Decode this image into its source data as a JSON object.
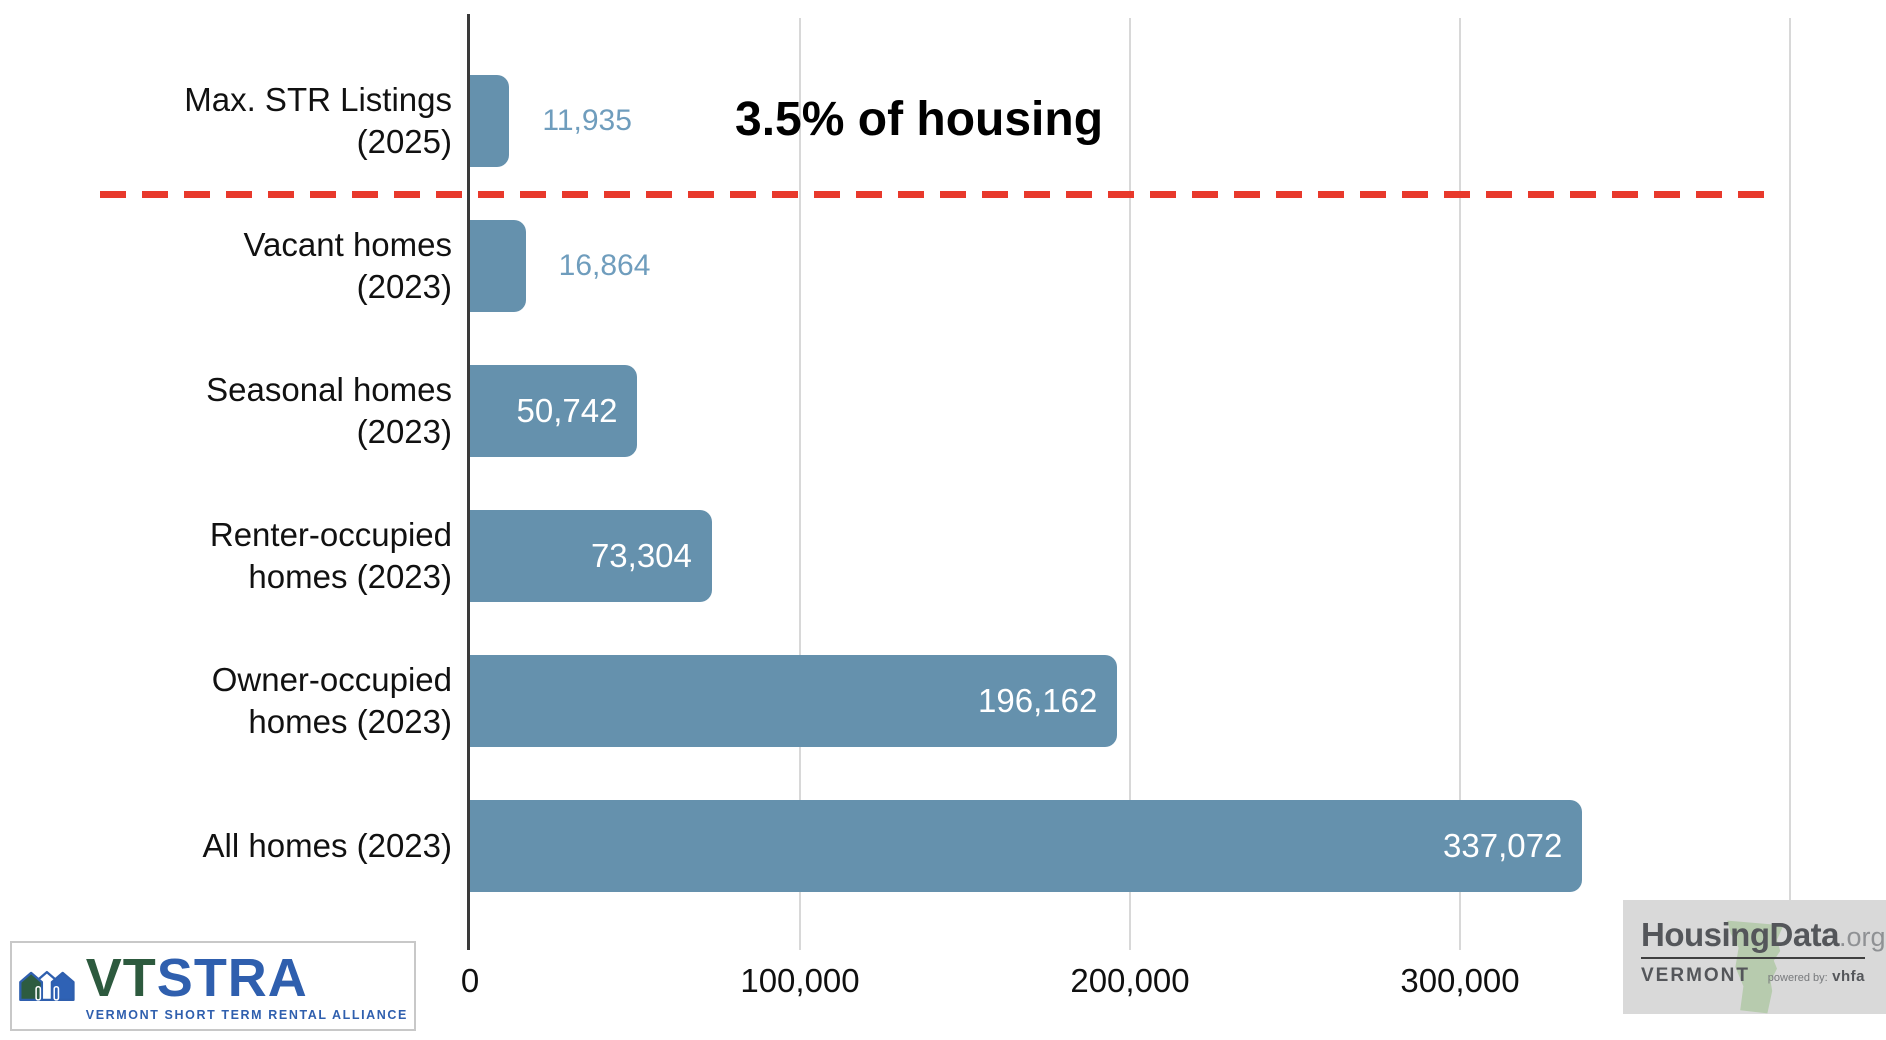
{
  "chart_data": {
    "type": "bar",
    "orientation": "horizontal",
    "title": "",
    "categories": [
      "Max. STR Listings (2025)",
      "Vacant homes (2023)",
      "Seasonal homes (2023)",
      "Renter-occupied homes (2023)",
      "Owner-occupied homes (2023)",
      "All homes (2023)"
    ],
    "category_label_lines": [
      [
        "Max. STR Listings",
        "(2025)"
      ],
      [
        "Vacant homes",
        "(2023)"
      ],
      [
        "Seasonal homes",
        "(2023)"
      ],
      [
        "Renter-occupied",
        "homes (2023)"
      ],
      [
        "Owner-occupied",
        "homes (2023)"
      ],
      [
        "All homes (2023)"
      ]
    ],
    "values": [
      11935,
      16864,
      50742,
      73304,
      196162,
      337072
    ],
    "value_labels": [
      "11,935",
      "16,864",
      "50,742",
      "73,304",
      "196,162",
      "337,072"
    ],
    "value_label_placement": [
      "outside",
      "outside",
      "inside",
      "inside",
      "inside",
      "inside"
    ],
    "x_ticks": [
      {
        "value": 0,
        "label": "0",
        "gridline": false
      },
      {
        "value": 100000,
        "label": "100,000",
        "gridline": true
      },
      {
        "value": 200000,
        "label": "200,000",
        "gridline": true
      },
      {
        "value": 300000,
        "label": "300,000",
        "gridline": true
      },
      {
        "value": 400000,
        "label": "",
        "gridline": true
      }
    ],
    "xlim": [
      0,
      400000
    ],
    "grid": true,
    "legend": "none",
    "annotation": "3.5% of housing",
    "reference_line": {
      "style": "dashed",
      "after_category_index": 0,
      "color": "#e8392c"
    },
    "bar_color": "#6591ad",
    "outside_value_color": "#6f9dbd",
    "inside_value_color": "#ffffff"
  },
  "footer": {
    "vtstra": {
      "vt": "VT",
      "stra": "STRA",
      "tagline": "VERMONT SHORT TERM RENTAL ALLIANCE"
    },
    "housingdata": {
      "brand": "HousingData",
      "tld": ".org",
      "region": "VERMONT",
      "powered_prefix": "powered by:",
      "powered_brand": "vhfa"
    }
  }
}
